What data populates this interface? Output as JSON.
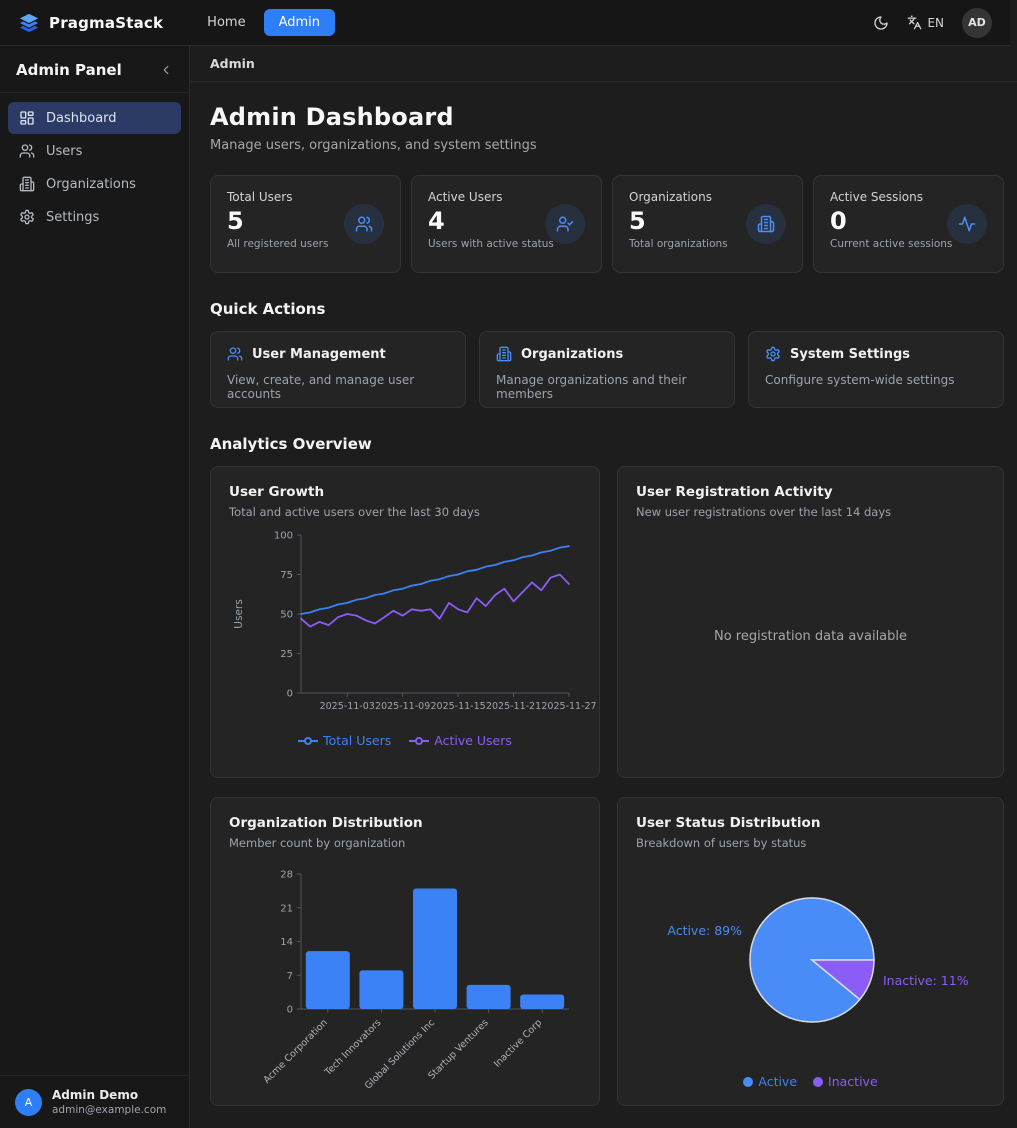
{
  "navbar": {
    "brand": "PragmaStack",
    "links": {
      "home": "Home",
      "admin": "Admin"
    },
    "language": "EN",
    "avatar_initials": "AD"
  },
  "sidebar": {
    "title": "Admin Panel",
    "items": [
      {
        "label": "Dashboard",
        "icon": "dashboard-icon",
        "active": true
      },
      {
        "label": "Users",
        "icon": "users-icon",
        "active": false
      },
      {
        "label": "Organizations",
        "icon": "building-icon",
        "active": false
      },
      {
        "label": "Settings",
        "icon": "gear-icon",
        "active": false
      }
    ],
    "user": {
      "initial": "A",
      "name": "Admin Demo",
      "email": "admin@example.com"
    }
  },
  "breadcrumb": "Admin",
  "page": {
    "title": "Admin Dashboard",
    "subtitle": "Manage users, organizations, and system settings"
  },
  "stats": [
    {
      "label": "Total Users",
      "value": "5",
      "description": "All registered users",
      "icon": "users-icon"
    },
    {
      "label": "Active Users",
      "value": "4",
      "description": "Users with active status",
      "icon": "user-check-icon"
    },
    {
      "label": "Organizations",
      "value": "5",
      "description": "Total organizations",
      "icon": "building-icon"
    },
    {
      "label": "Active Sessions",
      "value": "0",
      "description": "Current active sessions",
      "icon": "activity-icon"
    }
  ],
  "quick_actions": {
    "heading": "Quick Actions",
    "cards": [
      {
        "title": "User Management",
        "description": "View, create, and manage user accounts",
        "icon": "users-icon"
      },
      {
        "title": "Organizations",
        "description": "Manage organizations and their members",
        "icon": "building-icon"
      },
      {
        "title": "System Settings",
        "description": "Configure system-wide settings",
        "icon": "gear-icon"
      }
    ]
  },
  "analytics": {
    "heading": "Analytics Overview",
    "user_growth": {
      "title": "User Growth",
      "subtitle": "Total and active users over the last 30 days",
      "chart_data": {
        "type": "line",
        "ylabel": "Users",
        "ylim": [
          0,
          100
        ],
        "y_ticks": [
          0,
          25,
          50,
          75,
          100
        ],
        "x": [
          "2025-10-29",
          "2025-10-30",
          "2025-10-31",
          "2025-11-01",
          "2025-11-02",
          "2025-11-03",
          "2025-11-04",
          "2025-11-05",
          "2025-11-06",
          "2025-11-07",
          "2025-11-08",
          "2025-11-09",
          "2025-11-10",
          "2025-11-11",
          "2025-11-12",
          "2025-11-13",
          "2025-11-14",
          "2025-11-15",
          "2025-11-16",
          "2025-11-17",
          "2025-11-18",
          "2025-11-19",
          "2025-11-20",
          "2025-11-21",
          "2025-11-22",
          "2025-11-23",
          "2025-11-24",
          "2025-11-25",
          "2025-11-26",
          "2025-11-27"
        ],
        "x_ticks": [
          "2025-11-03",
          "2025-11-09",
          "2025-11-15",
          "2025-11-21",
          "2025-11-27"
        ],
        "series": [
          {
            "name": "Total Users",
            "color": "#3b82f6",
            "values": [
              50,
              51,
              53,
              54,
              56,
              57,
              59,
              60,
              62,
              63,
              65,
              66,
              68,
              69,
              71,
              72,
              74,
              75,
              77,
              78,
              80,
              81,
              83,
              84,
              86,
              87,
              89,
              90,
              92,
              93
            ]
          },
          {
            "name": "Active Users",
            "color": "#8b5cf6",
            "values": [
              47,
              42,
              45,
              43,
              48,
              50,
              49,
              46,
              44,
              48,
              52,
              49,
              53,
              52,
              53,
              47,
              57,
              53,
              51,
              60,
              55,
              62,
              66,
              58,
              64,
              70,
              65,
              73,
              75,
              69
            ]
          }
        ],
        "legend_position": "bottom"
      }
    },
    "registration": {
      "title": "User Registration Activity",
      "subtitle": "New user registrations over the last 14 days",
      "empty_message": "No registration data available"
    },
    "org_distribution": {
      "title": "Organization Distribution",
      "subtitle": "Member count by organization",
      "chart_data": {
        "type": "bar",
        "categories": [
          "Acme Corporation",
          "Tech Innovators",
          "Global Solutions Inc",
          "Startup Ventures",
          "Inactive Corp"
        ],
        "values": [
          12,
          8,
          25,
          5,
          3
        ],
        "bar_color": "#3b82f6",
        "ylim": [
          0,
          28
        ],
        "y_ticks": [
          0,
          7,
          14,
          21,
          28
        ]
      }
    },
    "user_status": {
      "title": "User Status Distribution",
      "subtitle": "Breakdown of users by status",
      "chart_data": {
        "type": "pie",
        "slices": [
          {
            "label": "Active",
            "pct": 89,
            "color": "#4a8cf7",
            "callout": "Active: 89%"
          },
          {
            "label": "Inactive",
            "pct": 11,
            "color": "#8b5cf6",
            "callout": "Inactive: 11%"
          }
        ],
        "legend_position": "bottom"
      }
    }
  },
  "colors": {
    "accent": "#3b82f6",
    "purple": "#8b5cf6",
    "axis": "#55555c",
    "tick_text": "#9ca3af"
  }
}
